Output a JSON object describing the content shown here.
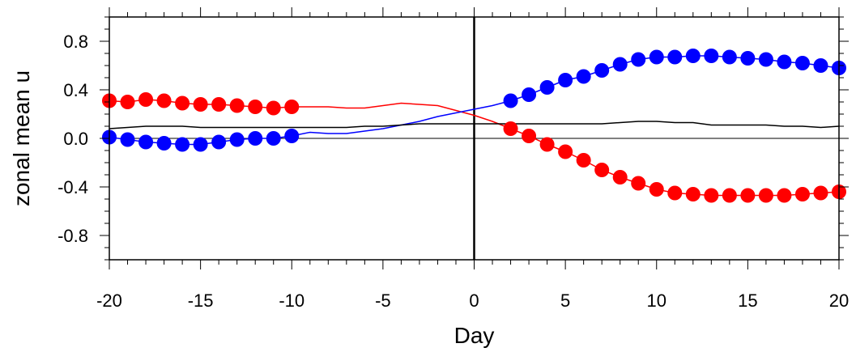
{
  "chart_data": {
    "type": "line",
    "xlabel": "Day",
    "ylabel": "zonal mean u",
    "xlim": [
      -20,
      20
    ],
    "ylim": [
      -1.0,
      1.0
    ],
    "xticks": [
      "-20",
      "-15",
      "-10",
      "-5",
      "0",
      "5",
      "10",
      "15",
      "20"
    ],
    "yticks": [
      "0.8",
      "0.4",
      "0.0",
      "-0.4",
      "-0.8"
    ],
    "grid": false,
    "reference_lines": {
      "x": 0,
      "y": 0
    },
    "series": [
      {
        "color": "#ff0000",
        "markers": "filled-circle",
        "x": [
          -20,
          -19,
          -18,
          -17,
          -16,
          -15,
          -14,
          -13,
          -12,
          -11,
          -10,
          -9,
          -8,
          -7,
          -6,
          -5,
          -4,
          -3,
          -2,
          -1,
          0,
          1,
          2,
          3,
          4,
          5,
          6,
          7,
          8,
          9,
          10,
          11,
          12,
          13,
          14,
          15,
          16,
          17,
          18,
          19,
          20
        ],
        "y": [
          0.31,
          0.3,
          0.32,
          0.31,
          0.29,
          0.28,
          0.28,
          0.27,
          0.26,
          0.25,
          0.26,
          0.26,
          0.26,
          0.25,
          0.25,
          0.27,
          0.29,
          0.28,
          0.27,
          0.23,
          0.19,
          0.14,
          0.08,
          0.02,
          -0.05,
          -0.11,
          -0.18,
          -0.26,
          -0.32,
          -0.37,
          -0.42,
          -0.45,
          -0.46,
          -0.47,
          -0.47,
          -0.47,
          -0.47,
          -0.47,
          -0.46,
          -0.45,
          -0.44
        ],
        "marked": [
          true,
          true,
          true,
          true,
          true,
          true,
          true,
          true,
          true,
          true,
          true,
          false,
          false,
          false,
          false,
          false,
          false,
          false,
          false,
          false,
          false,
          false,
          true,
          true,
          true,
          true,
          true,
          true,
          true,
          true,
          true,
          true,
          true,
          true,
          true,
          true,
          true,
          true,
          true,
          true,
          true
        ]
      },
      {
        "color": "#0000ff",
        "markers": "filled-circle",
        "x": [
          -20,
          -19,
          -18,
          -17,
          -16,
          -15,
          -14,
          -13,
          -12,
          -11,
          -10,
          -9,
          -8,
          -7,
          -6,
          -5,
          -4,
          -3,
          -2,
          -1,
          0,
          1,
          2,
          3,
          4,
          5,
          6,
          7,
          8,
          9,
          10,
          11,
          12,
          13,
          14,
          15,
          16,
          17,
          18,
          19,
          20
        ],
        "y": [
          0.01,
          -0.01,
          -0.03,
          -0.04,
          -0.05,
          -0.05,
          -0.03,
          -0.01,
          0.0,
          0.0,
          0.02,
          0.05,
          0.04,
          0.04,
          0.06,
          0.08,
          0.11,
          0.14,
          0.18,
          0.21,
          0.24,
          0.27,
          0.31,
          0.36,
          0.42,
          0.48,
          0.51,
          0.56,
          0.61,
          0.65,
          0.67,
          0.67,
          0.68,
          0.68,
          0.67,
          0.66,
          0.65,
          0.63,
          0.62,
          0.6,
          0.58
        ],
        "marked": [
          true,
          true,
          true,
          true,
          true,
          true,
          true,
          true,
          true,
          true,
          true,
          false,
          false,
          false,
          false,
          false,
          false,
          false,
          false,
          false,
          false,
          false,
          true,
          true,
          true,
          true,
          true,
          true,
          true,
          true,
          true,
          true,
          true,
          true,
          true,
          true,
          true,
          true,
          true,
          true,
          true
        ]
      },
      {
        "color": "#000000",
        "markers": "none",
        "x": [
          -20,
          -19,
          -18,
          -17,
          -16,
          -15,
          -14,
          -13,
          -12,
          -11,
          -10,
          -9,
          -8,
          -7,
          -6,
          -5,
          -4,
          -3,
          -2,
          -1,
          0,
          1,
          2,
          3,
          4,
          5,
          6,
          7,
          8,
          9,
          10,
          11,
          12,
          13,
          14,
          15,
          16,
          17,
          18,
          19,
          20
        ],
        "y": [
          0.08,
          0.09,
          0.1,
          0.1,
          0.1,
          0.09,
          0.09,
          0.09,
          0.09,
          0.09,
          0.09,
          0.09,
          0.09,
          0.09,
          0.1,
          0.1,
          0.11,
          0.12,
          0.12,
          0.12,
          0.12,
          0.12,
          0.12,
          0.12,
          0.12,
          0.12,
          0.12,
          0.12,
          0.13,
          0.14,
          0.14,
          0.13,
          0.13,
          0.11,
          0.11,
          0.11,
          0.11,
          0.1,
          0.1,
          0.09,
          0.1
        ]
      }
    ]
  }
}
